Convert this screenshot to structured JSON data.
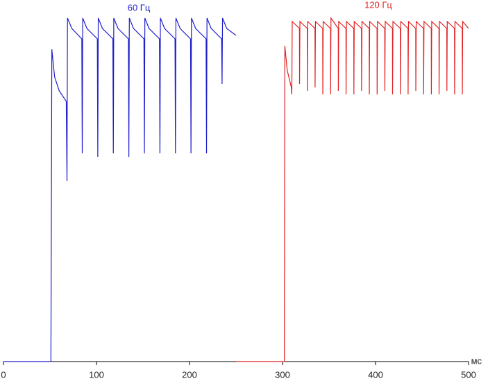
{
  "chart_data": {
    "type": "line",
    "xlabel": "мс",
    "xlim": [
      0,
      500
    ],
    "xticks": [
      0,
      100,
      200,
      300,
      400,
      500
    ],
    "ylim": [
      0,
      100
    ],
    "series": [
      {
        "name": "60 Гц",
        "color": "#1f1fcc",
        "x": [
          0,
          51,
          52,
          55,
          60,
          67.5,
          68.3,
          68.8,
          73.5,
          84.2,
          84.7,
          85.2,
          89.7,
          100.9,
          101.4,
          101.9,
          106.4,
          117.6,
          118.1,
          118.6,
          123.1,
          134.3,
          134.8,
          135.3,
          139.8,
          151,
          151.5,
          152,
          156.5,
          167.7,
          168.2,
          168.7,
          173.2,
          184.4,
          184.9,
          185.4,
          189.9,
          201.1,
          201.6,
          202.1,
          206.6,
          217.8,
          218.3,
          218.8,
          223.3,
          234.5,
          235,
          235.5,
          240,
          250
        ],
        "values": [
          0,
          0,
          90,
          82,
          78,
          75,
          52,
          99,
          96,
          93,
          60,
          99,
          96,
          93,
          59,
          99,
          96,
          93,
          60,
          99,
          96,
          93,
          59,
          99,
          96,
          93,
          60,
          99,
          96,
          93,
          60,
          99,
          96,
          93,
          60,
          99,
          96,
          93,
          60,
          99,
          96,
          93,
          60,
          99,
          96,
          93,
          80,
          99,
          96,
          94
        ]
      },
      {
        "name": "120 Гц",
        "color": "#e02020",
        "x": [
          250,
          302,
          302.5,
          305,
          309.5,
          310,
          310.4,
          318.2,
          318.3,
          318.7,
          326.6,
          326.7,
          327.1,
          334.9,
          335,
          335.4,
          343.2,
          343.3,
          343.7,
          351.6,
          351.7,
          352.1,
          359.9,
          360,
          360.4,
          368.2,
          368.3,
          368.7,
          376.6,
          376.7,
          377.1,
          384.9,
          385,
          385.4,
          393.2,
          393.3,
          393.7,
          401.6,
          401.7,
          402.1,
          409.9,
          410,
          410.4,
          418.2,
          418.3,
          418.7,
          426.6,
          426.7,
          427.1,
          434.9,
          435,
          435.4,
          443.2,
          443.3,
          443.7,
          451.6,
          451.7,
          452.1,
          459.9,
          460,
          460.4,
          468.2,
          468.3,
          468.7,
          476.6,
          476.7,
          477.1,
          484.9,
          485,
          485.4,
          493.2,
          493.3,
          493.7,
          500
        ],
        "values": [
          0,
          0,
          91,
          84,
          79,
          77,
          98,
          96,
          80,
          98,
          96,
          78,
          98,
          96,
          79,
          98,
          96,
          77,
          98,
          96,
          77,
          99,
          96,
          78,
          98,
          96,
          77,
          98,
          96,
          77,
          98,
          96,
          78,
          98,
          96,
          77,
          98,
          96,
          77,
          98,
          96,
          78,
          98,
          96,
          77,
          98,
          96,
          77,
          98,
          96,
          77,
          98,
          96,
          78,
          98,
          96,
          77,
          98,
          96,
          77,
          98,
          96,
          77,
          98,
          96,
          78,
          98,
          96,
          77,
          98,
          96,
          77,
          98,
          96
        ]
      }
    ]
  }
}
